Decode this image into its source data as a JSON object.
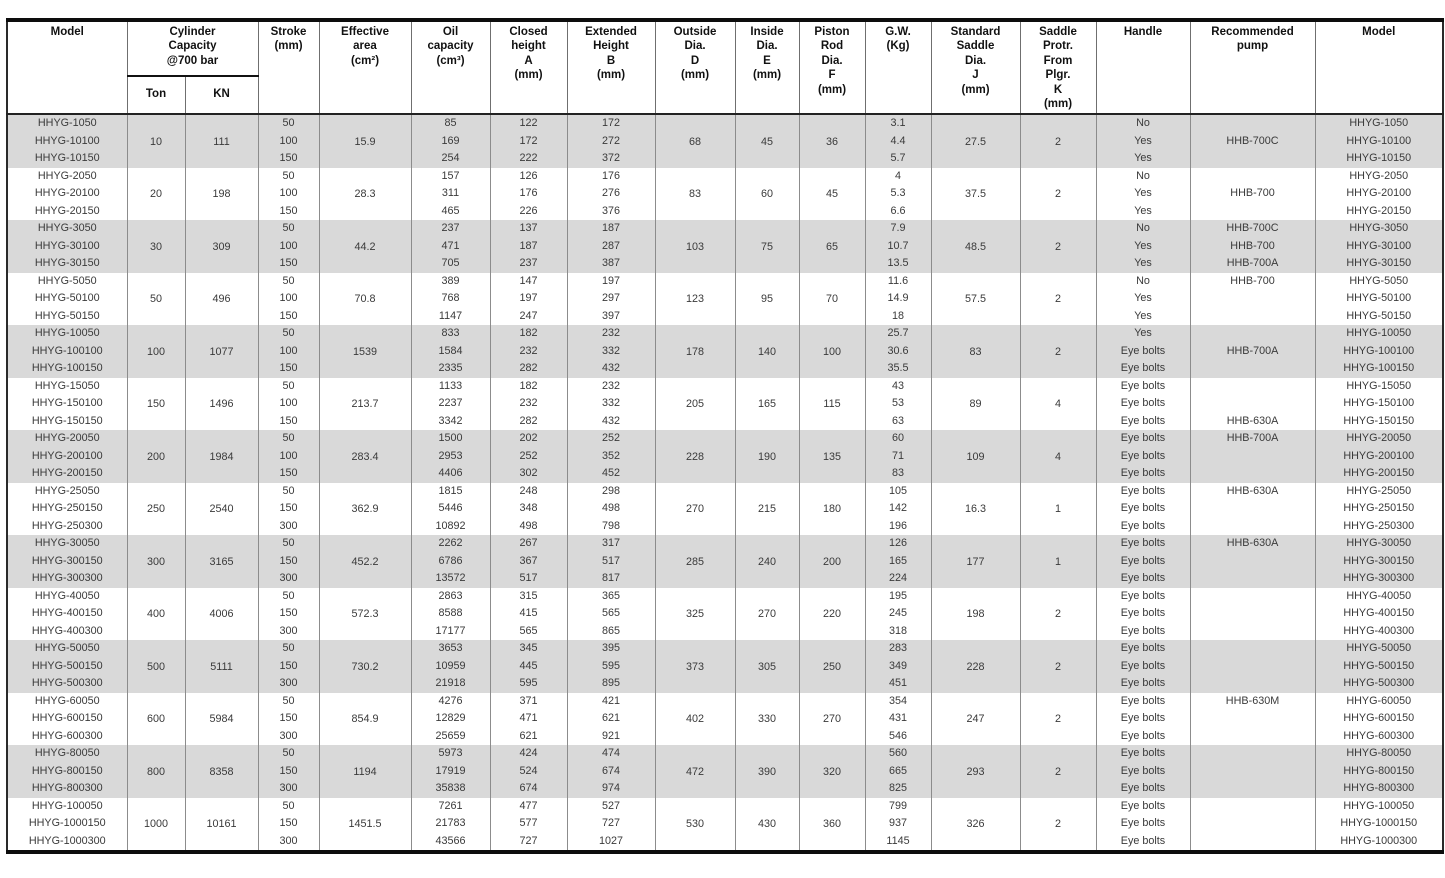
{
  "header": {
    "model_left": "Model",
    "capacity": "Cylinder\nCapacity\n@700 bar",
    "ton": "Ton",
    "kn": "KN",
    "stroke": "Stroke\n(mm)",
    "effective_area": "Effective\narea\n(cm²)",
    "oil_capacity": "Oil\ncapacity\n(cm³)",
    "closed_height": "Closed\nheight\nA\n(mm)",
    "extended_height": "Extended\nHeight\nB\n(mm)",
    "outside_dia": "Outside\nDia.\nD\n(mm)",
    "inside_dia": "Inside\nDia.\nE\n(mm)",
    "piston_rod_dia": "Piston\nRod\nDia.\nF\n(mm)",
    "gw": "G.W.\n(Kg)",
    "standard_saddle_dia": "Standard\nSaddle\nDia.\nJ\n(mm)",
    "saddle_protr": "Saddle\nProtr.\nFrom\nPlgr.\nK\n(mm)",
    "handle": "Handle",
    "recommended_pump": "Recommended\npump",
    "model_right": "Model"
  },
  "table": {
    "groups": [
      {
        "models": [
          "HHYG-1050",
          "HHYG-10100",
          "HHYG-10150"
        ],
        "ton": "10",
        "kn": "111",
        "strokes": [
          "50",
          "100",
          "150"
        ],
        "effective_area": "15.9",
        "oil": [
          "85",
          "169",
          "254"
        ],
        "closed": [
          "122",
          "172",
          "222"
        ],
        "extended": [
          "172",
          "272",
          "372"
        ],
        "outside_dia": "68",
        "inside_dia": "45",
        "rod_dia": "36",
        "gw": [
          "3.1",
          "4.4",
          "5.7"
        ],
        "saddle_dia": "27.5",
        "protr": "2",
        "handles": [
          "No",
          "Yes",
          "Yes"
        ],
        "pumps": [
          "",
          "HHB-700C",
          ""
        ]
      },
      {
        "models": [
          "HHYG-2050",
          "HHYG-20100",
          "HHYG-20150"
        ],
        "ton": "20",
        "kn": "198",
        "strokes": [
          "50",
          "100",
          "150"
        ],
        "effective_area": "28.3",
        "oil": [
          "157",
          "311",
          "465"
        ],
        "closed": [
          "126",
          "176",
          "226"
        ],
        "extended": [
          "176",
          "276",
          "376"
        ],
        "outside_dia": "83",
        "inside_dia": "60",
        "rod_dia": "45",
        "gw": [
          "4",
          "5.3",
          "6.6"
        ],
        "saddle_dia": "37.5",
        "protr": "2",
        "handles": [
          "No",
          "Yes",
          "Yes"
        ],
        "pumps": [
          "",
          "HHB-700",
          ""
        ]
      },
      {
        "models": [
          "HHYG-3050",
          "HHYG-30100",
          "HHYG-30150"
        ],
        "ton": "30",
        "kn": "309",
        "strokes": [
          "50",
          "100",
          "150"
        ],
        "effective_area": "44.2",
        "oil": [
          "237",
          "471",
          "705"
        ],
        "closed": [
          "137",
          "187",
          "237"
        ],
        "extended": [
          "187",
          "287",
          "387"
        ],
        "outside_dia": "103",
        "inside_dia": "75",
        "rod_dia": "65",
        "gw": [
          "7.9",
          "10.7",
          "13.5"
        ],
        "saddle_dia": "48.5",
        "protr": "2",
        "handles": [
          "No",
          "Yes",
          "Yes"
        ],
        "pumps": [
          "HHB-700C",
          "HHB-700",
          "HHB-700A"
        ]
      },
      {
        "models": [
          "HHYG-5050",
          "HHYG-50100",
          "HHYG-50150"
        ],
        "ton": "50",
        "kn": "496",
        "strokes": [
          "50",
          "100",
          "150"
        ],
        "effective_area": "70.8",
        "oil": [
          "389",
          "768",
          "1147"
        ],
        "closed": [
          "147",
          "197",
          "247"
        ],
        "extended": [
          "197",
          "297",
          "397"
        ],
        "outside_dia": "123",
        "inside_dia": "95",
        "rod_dia": "70",
        "gw": [
          "11.6",
          "14.9",
          "18"
        ],
        "saddle_dia": "57.5",
        "protr": "2",
        "handles": [
          "No",
          "Yes",
          "Yes"
        ],
        "pumps": [
          "HHB-700",
          "",
          ""
        ]
      },
      {
        "models": [
          "HHYG-10050",
          "HHYG-100100",
          "HHYG-100150"
        ],
        "ton": "100",
        "kn": "1077",
        "strokes": [
          "50",
          "100",
          "150"
        ],
        "effective_area": "1539",
        "oil": [
          "833",
          "1584",
          "2335"
        ],
        "closed": [
          "182",
          "232",
          "282"
        ],
        "extended": [
          "232",
          "332",
          "432"
        ],
        "outside_dia": "178",
        "inside_dia": "140",
        "rod_dia": "100",
        "gw": [
          "25.7",
          "30.6",
          "35.5"
        ],
        "saddle_dia": "83",
        "protr": "2",
        "handles": [
          "Yes",
          "Eye bolts",
          "Eye bolts"
        ],
        "pumps": [
          "",
          "HHB-700A",
          ""
        ]
      },
      {
        "models": [
          "HHYG-15050",
          "HHYG-150100",
          "HHYG-150150"
        ],
        "ton": "150",
        "kn": "1496",
        "strokes": [
          "50",
          "100",
          "150"
        ],
        "effective_area": "213.7",
        "oil": [
          "1133",
          "2237",
          "3342"
        ],
        "closed": [
          "182",
          "232",
          "282"
        ],
        "extended": [
          "232",
          "332",
          "432"
        ],
        "outside_dia": "205",
        "inside_dia": "165",
        "rod_dia": "115",
        "gw": [
          "43",
          "53",
          "63"
        ],
        "saddle_dia": "89",
        "protr": "4",
        "handles": [
          "Eye bolts",
          "Eye bolts",
          "Eye bolts"
        ],
        "pumps": [
          "",
          "",
          "HHB-630A"
        ]
      },
      {
        "models": [
          "HHYG-20050",
          "HHYG-200100",
          "HHYG-200150"
        ],
        "ton": "200",
        "kn": "1984",
        "strokes": [
          "50",
          "100",
          "150"
        ],
        "effective_area": "283.4",
        "oil": [
          "1500",
          "2953",
          "4406"
        ],
        "closed": [
          "202",
          "252",
          "302"
        ],
        "extended": [
          "252",
          "352",
          "452"
        ],
        "outside_dia": "228",
        "inside_dia": "190",
        "rod_dia": "135",
        "gw": [
          "60",
          "71",
          "83"
        ],
        "saddle_dia": "109",
        "protr": "4",
        "handles": [
          "Eye bolts",
          "Eye bolts",
          "Eye bolts"
        ],
        "pumps": [
          "HHB-700A",
          "",
          ""
        ]
      },
      {
        "models": [
          "HHYG-25050",
          "HHYG-250150",
          "HHYG-250300"
        ],
        "ton": "250",
        "kn": "2540",
        "strokes": [
          "50",
          "150",
          "300"
        ],
        "effective_area": "362.9",
        "oil": [
          "1815",
          "5446",
          "10892"
        ],
        "closed": [
          "248",
          "348",
          "498"
        ],
        "extended": [
          "298",
          "498",
          "798"
        ],
        "outside_dia": "270",
        "inside_dia": "215",
        "rod_dia": "180",
        "gw": [
          "105",
          "142",
          "196"
        ],
        "saddle_dia": "16.3",
        "protr": "1",
        "handles": [
          "Eye bolts",
          "Eye bolts",
          "Eye bolts"
        ],
        "pumps": [
          "HHB-630A",
          "",
          ""
        ]
      },
      {
        "models": [
          "HHYG-30050",
          "HHYG-300150",
          "HHYG-300300"
        ],
        "ton": "300",
        "kn": "3165",
        "strokes": [
          "50",
          "150",
          "300"
        ],
        "effective_area": "452.2",
        "oil": [
          "2262",
          "6786",
          "13572"
        ],
        "closed": [
          "267",
          "367",
          "517"
        ],
        "extended": [
          "317",
          "517",
          "817"
        ],
        "outside_dia": "285",
        "inside_dia": "240",
        "rod_dia": "200",
        "gw": [
          "126",
          "165",
          "224"
        ],
        "saddle_dia": "177",
        "protr": "1",
        "handles": [
          "Eye bolts",
          "Eye bolts",
          "Eye bolts"
        ],
        "pumps": [
          "HHB-630A",
          "",
          ""
        ]
      },
      {
        "models": [
          "HHYG-40050",
          "HHYG-400150",
          "HHYG-400300"
        ],
        "ton": "400",
        "kn": "4006",
        "strokes": [
          "50",
          "150",
          "300"
        ],
        "effective_area": "572.3",
        "oil": [
          "2863",
          "8588",
          "17177"
        ],
        "closed": [
          "315",
          "415",
          "565"
        ],
        "extended": [
          "365",
          "565",
          "865"
        ],
        "outside_dia": "325",
        "inside_dia": "270",
        "rod_dia": "220",
        "gw": [
          "195",
          "245",
          "318"
        ],
        "saddle_dia": "198",
        "protr": "2",
        "handles": [
          "Eye bolts",
          "Eye bolts",
          "Eye bolts"
        ],
        "pumps": [
          "",
          "",
          ""
        ]
      },
      {
        "models": [
          "HHYG-50050",
          "HHYG-500150",
          "HHYG-500300"
        ],
        "ton": "500",
        "kn": "5111",
        "strokes": [
          "50",
          "150",
          "300"
        ],
        "effective_area": "730.2",
        "oil": [
          "3653",
          "10959",
          "21918"
        ],
        "closed": [
          "345",
          "445",
          "595"
        ],
        "extended": [
          "395",
          "595",
          "895"
        ],
        "outside_dia": "373",
        "inside_dia": "305",
        "rod_dia": "250",
        "gw": [
          "283",
          "349",
          "451"
        ],
        "saddle_dia": "228",
        "protr": "2",
        "handles": [
          "Eye bolts",
          "Eye bolts",
          "Eye bolts"
        ],
        "pumps": [
          "",
          "",
          ""
        ]
      },
      {
        "models": [
          "HHYG-60050",
          "HHYG-600150",
          "HHYG-600300"
        ],
        "ton": "600",
        "kn": "5984",
        "strokes": [
          "50",
          "150",
          "300"
        ],
        "effective_area": "854.9",
        "oil": [
          "4276",
          "12829",
          "25659"
        ],
        "closed": [
          "371",
          "471",
          "621"
        ],
        "extended": [
          "421",
          "621",
          "921"
        ],
        "outside_dia": "402",
        "inside_dia": "330",
        "rod_dia": "270",
        "gw": [
          "354",
          "431",
          "546"
        ],
        "saddle_dia": "247",
        "protr": "2",
        "handles": [
          "Eye bolts",
          "Eye bolts",
          "Eye bolts"
        ],
        "pumps": [
          "HHB-630M",
          "",
          ""
        ]
      },
      {
        "models": [
          "HHYG-80050",
          "HHYG-800150",
          "HHYG-800300"
        ],
        "ton": "800",
        "kn": "8358",
        "strokes": [
          "50",
          "150",
          "300"
        ],
        "effective_area": "1194",
        "oil": [
          "5973",
          "17919",
          "35838"
        ],
        "closed": [
          "424",
          "524",
          "674"
        ],
        "extended": [
          "474",
          "674",
          "974"
        ],
        "outside_dia": "472",
        "inside_dia": "390",
        "rod_dia": "320",
        "gw": [
          "560",
          "665",
          "825"
        ],
        "saddle_dia": "293",
        "protr": "2",
        "handles": [
          "Eye bolts",
          "Eye bolts",
          "Eye bolts"
        ],
        "pumps": [
          "",
          "",
          ""
        ]
      },
      {
        "models": [
          "HHYG-100050",
          "HHYG-1000150",
          "HHYG-1000300"
        ],
        "ton": "1000",
        "kn": "10161",
        "strokes": [
          "50",
          "150",
          "300"
        ],
        "effective_area": "1451.5",
        "oil": [
          "7261",
          "21783",
          "43566"
        ],
        "closed": [
          "477",
          "577",
          "727"
        ],
        "extended": [
          "527",
          "727",
          "1027"
        ],
        "outside_dia": "530",
        "inside_dia": "430",
        "rod_dia": "360",
        "gw": [
          "799",
          "937",
          "1145"
        ],
        "saddle_dia": "326",
        "protr": "2",
        "handles": [
          "Eye bolts",
          "Eye bolts",
          "Eye bolts"
        ],
        "pumps": [
          "",
          "",
          ""
        ]
      }
    ]
  },
  "colors": {
    "band_gray": "#d9d9d9",
    "band_white": "#ffffff",
    "border_dark": "#0d0d0d",
    "grid_line": "#8c8c8c"
  }
}
